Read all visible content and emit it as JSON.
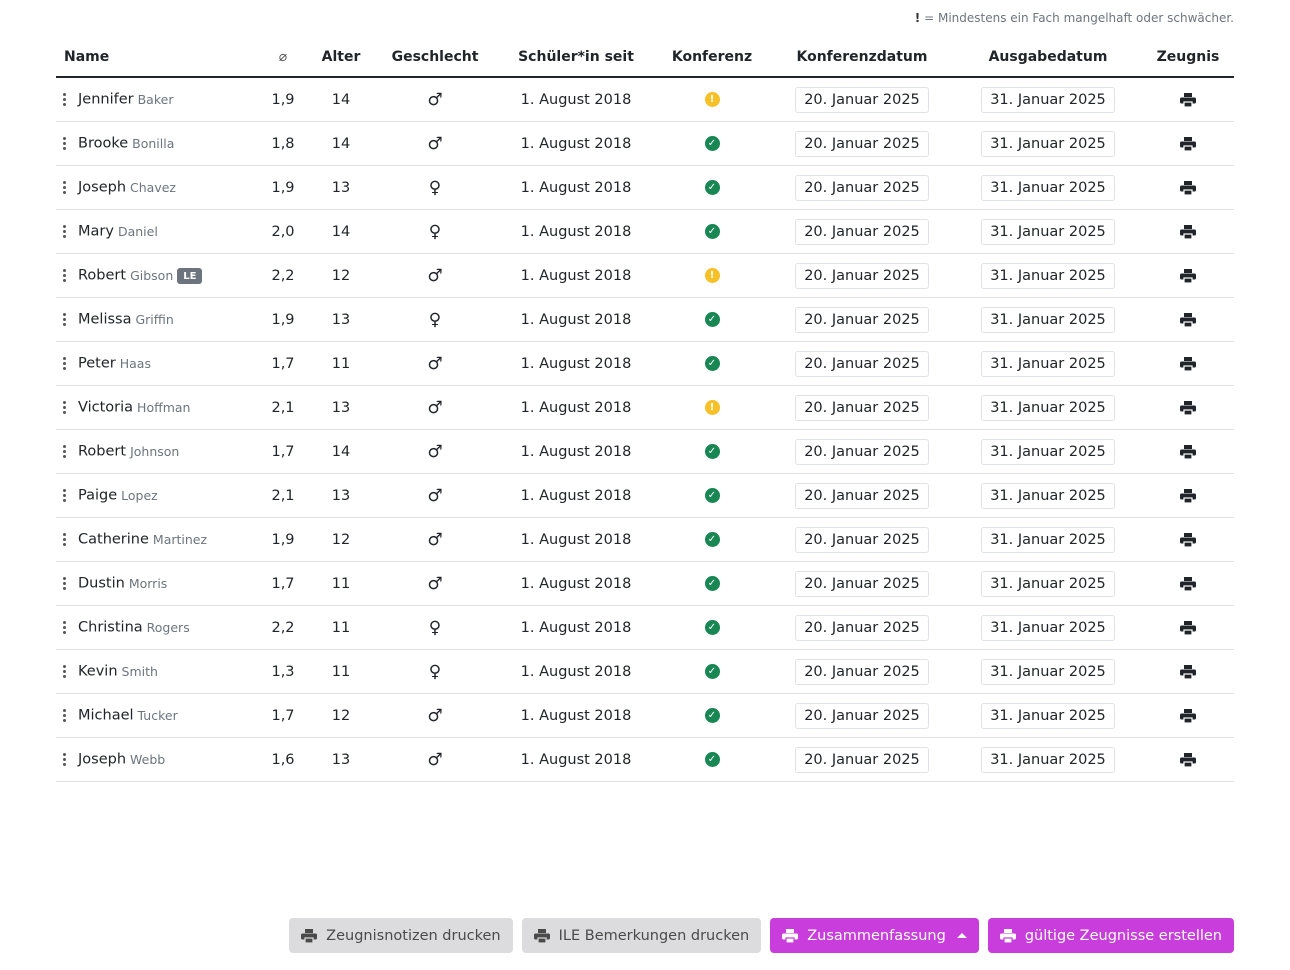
{
  "legend": {
    "mark": "!",
    "text": "= Mindestens ein Fach mangelhaft oder schwächer."
  },
  "columns": {
    "name": "Name",
    "avg": "⌀",
    "age": "Alter",
    "gender": "Geschlecht",
    "since": "Schüler*in seit",
    "conference": "Konferenz",
    "conference_date": "Konferenzdatum",
    "issue_date": "Ausgabedatum",
    "certificate": "Zeugnis"
  },
  "status_colors": {
    "ok": "#198754",
    "warn": "#f6c026"
  },
  "accent_color": "#c83ddb",
  "students": [
    {
      "first": "Jennifer",
      "last": "Baker",
      "badge": "",
      "avg": "1,9",
      "age": "14",
      "gender": "♂",
      "since": "1. August 2018",
      "status": "warn",
      "status_glyph": "!",
      "conference_date": "20. Januar 2025",
      "issue_date": "31. Januar 2025"
    },
    {
      "first": "Brooke",
      "last": "Bonilla",
      "badge": "",
      "avg": "1,8",
      "age": "14",
      "gender": "♂",
      "since": "1. August 2018",
      "status": "ok",
      "status_glyph": "✓",
      "conference_date": "20. Januar 2025",
      "issue_date": "31. Januar 2025"
    },
    {
      "first": "Joseph",
      "last": "Chavez",
      "badge": "",
      "avg": "1,9",
      "age": "13",
      "gender": "♀",
      "since": "1. August 2018",
      "status": "ok",
      "status_glyph": "✓",
      "conference_date": "20. Januar 2025",
      "issue_date": "31. Januar 2025"
    },
    {
      "first": "Mary",
      "last": "Daniel",
      "badge": "",
      "avg": "2,0",
      "age": "14",
      "gender": "♀",
      "since": "1. August 2018",
      "status": "ok",
      "status_glyph": "✓",
      "conference_date": "20. Januar 2025",
      "issue_date": "31. Januar 2025"
    },
    {
      "first": "Robert",
      "last": "Gibson",
      "badge": "LE",
      "avg": "2,2",
      "age": "12",
      "gender": "♂",
      "since": "1. August 2018",
      "status": "warn",
      "status_glyph": "!",
      "conference_date": "20. Januar 2025",
      "issue_date": "31. Januar 2025"
    },
    {
      "first": "Melissa",
      "last": "Griffin",
      "badge": "",
      "avg": "1,9",
      "age": "13",
      "gender": "♀",
      "since": "1. August 2018",
      "status": "ok",
      "status_glyph": "✓",
      "conference_date": "20. Januar 2025",
      "issue_date": "31. Januar 2025"
    },
    {
      "first": "Peter",
      "last": "Haas",
      "badge": "",
      "avg": "1,7",
      "age": "11",
      "gender": "♂",
      "since": "1. August 2018",
      "status": "ok",
      "status_glyph": "✓",
      "conference_date": "20. Januar 2025",
      "issue_date": "31. Januar 2025"
    },
    {
      "first": "Victoria",
      "last": "Hoffman",
      "badge": "",
      "avg": "2,1",
      "age": "13",
      "gender": "♂",
      "since": "1. August 2018",
      "status": "warn",
      "status_glyph": "!",
      "conference_date": "20. Januar 2025",
      "issue_date": "31. Januar 2025"
    },
    {
      "first": "Robert",
      "last": "Johnson",
      "badge": "",
      "avg": "1,7",
      "age": "14",
      "gender": "♂",
      "since": "1. August 2018",
      "status": "ok",
      "status_glyph": "✓",
      "conference_date": "20. Januar 2025",
      "issue_date": "31. Januar 2025"
    },
    {
      "first": "Paige",
      "last": "Lopez",
      "badge": "",
      "avg": "2,1",
      "age": "13",
      "gender": "♂",
      "since": "1. August 2018",
      "status": "ok",
      "status_glyph": "✓",
      "conference_date": "20. Januar 2025",
      "issue_date": "31. Januar 2025"
    },
    {
      "first": "Catherine",
      "last": "Martinez",
      "badge": "",
      "avg": "1,9",
      "age": "12",
      "gender": "♂",
      "since": "1. August 2018",
      "status": "ok",
      "status_glyph": "✓",
      "conference_date": "20. Januar 2025",
      "issue_date": "31. Januar 2025"
    },
    {
      "first": "Dustin",
      "last": "Morris",
      "badge": "",
      "avg": "1,7",
      "age": "11",
      "gender": "♂",
      "since": "1. August 2018",
      "status": "ok",
      "status_glyph": "✓",
      "conference_date": "20. Januar 2025",
      "issue_date": "31. Januar 2025"
    },
    {
      "first": "Christina",
      "last": "Rogers",
      "badge": "",
      "avg": "2,2",
      "age": "11",
      "gender": "♀",
      "since": "1. August 2018",
      "status": "ok",
      "status_glyph": "✓",
      "conference_date": "20. Januar 2025",
      "issue_date": "31. Januar 2025"
    },
    {
      "first": "Kevin",
      "last": "Smith",
      "badge": "",
      "avg": "1,3",
      "age": "11",
      "gender": "♀",
      "since": "1. August 2018",
      "status": "ok",
      "status_glyph": "✓",
      "conference_date": "20. Januar 2025",
      "issue_date": "31. Januar 2025"
    },
    {
      "first": "Michael",
      "last": "Tucker",
      "badge": "",
      "avg": "1,7",
      "age": "12",
      "gender": "♂",
      "since": "1. August 2018",
      "status": "ok",
      "status_glyph": "✓",
      "conference_date": "20. Januar 2025",
      "issue_date": "31. Januar 2025"
    },
    {
      "first": "Joseph",
      "last": "Webb",
      "badge": "",
      "avg": "1,6",
      "age": "13",
      "gender": "♂",
      "since": "1. August 2018",
      "status": "ok",
      "status_glyph": "✓",
      "conference_date": "20. Januar 2025",
      "issue_date": "31. Januar 2025"
    }
  ],
  "footer": {
    "notes_button": "Zeugnisnotizen drucken",
    "ile_button": "ILE Bemerkungen drucken",
    "summary_button": "Zusammenfassung",
    "create_button": "gültige Zeugnisse erstellen"
  }
}
